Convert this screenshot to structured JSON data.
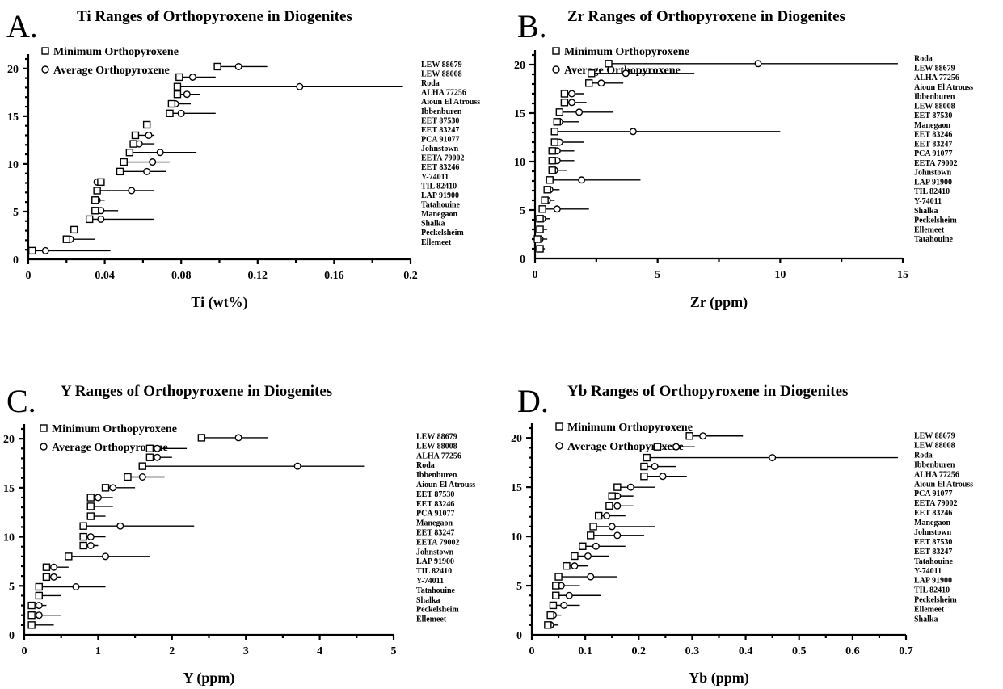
{
  "legend": {
    "minimum": "Minimum Orthopyroxene",
    "average": "Average Orthopyroxene"
  },
  "chart_data": [
    {
      "type": "scatter",
      "letter": "A.",
      "title": "Ti Ranges of Orthopyroxene in Diogenites",
      "xlabel": "Ti (wt%)",
      "xlim": [
        0,
        0.2
      ],
      "ylim": [
        0,
        21
      ],
      "xticks": [
        "0",
        "0.04",
        "0.08",
        "0.12",
        "0.16",
        "0.2"
      ],
      "xtick_values": [
        0,
        0.04,
        0.08,
        0.12,
        0.16,
        0.2
      ],
      "yticks": [
        "0",
        "5",
        "10",
        "15",
        "20"
      ],
      "yname_start": 20.5,
      "yname_step": 0.98,
      "names": [
        "LEW 88679",
        "LEW 88008",
        "Roda",
        "ALHA 77256",
        "Aioun El Atrouss",
        "Ibbenburen",
        "EET 87530",
        "EET 83247",
        "PCA 91077",
        "Johnstown",
        "EETA 79002",
        "EET 83246",
        "Y-74011",
        "TIL 82410",
        "LAP 91900",
        "Tatahouine",
        "Manegaon",
        "Shalka",
        "Peckelsheim",
        "Ellemeet"
      ],
      "series": [
        {
          "name": "Minimum Orthopyroxene",
          "marker": "square",
          "values": [
            0.099,
            0.079,
            0.078,
            0.078,
            0.075,
            0.074,
            0.062,
            0.056,
            0.055,
            0.053,
            0.05,
            0.048,
            0.038,
            0.036,
            0.035,
            0.035,
            0.032,
            0.024,
            0.02,
            0.002
          ]
        },
        {
          "name": "Average Orthopyroxene",
          "marker": "circle",
          "values": [
            0.11,
            0.086,
            0.142,
            0.083,
            0.077,
            0.08,
            0.062,
            0.063,
            0.058,
            0.069,
            0.065,
            0.062,
            0.036,
            0.054,
            0.036,
            0.038,
            0.038,
            0.024,
            0.022,
            0.009
          ]
        },
        {
          "name": "Maximum",
          "marker": "none",
          "values": [
            0.125,
            0.098,
            0.196,
            0.09,
            0.085,
            0.098,
            0.064,
            0.066,
            0.066,
            0.088,
            0.074,
            0.072,
            0.04,
            0.066,
            0.04,
            0.047,
            0.066,
            0.026,
            0.035,
            0.043
          ]
        }
      ],
      "y": [
        20.2,
        19.1,
        18.1,
        17.3,
        16.3,
        15.3,
        14.1,
        13.0,
        12.1,
        11.2,
        10.2,
        9.2,
        8.1,
        7.2,
        6.2,
        5.1,
        4.2,
        3.1,
        2.1,
        0.9
      ]
    },
    {
      "type": "scatter",
      "letter": "B.",
      "title": "Zr Ranges of Orthopyroxene in Diogenites",
      "xlabel": "Zr (ppm)",
      "xlim": [
        0,
        15
      ],
      "ylim": [
        0,
        21
      ],
      "xticks": [
        "0",
        "5",
        "10",
        "15"
      ],
      "xtick_values": [
        0,
        5,
        10,
        15
      ],
      "yticks": [
        "0",
        "5",
        "10",
        "15",
        "20"
      ],
      "yname_start": 20.7,
      "yname_step": 0.98,
      "names": [
        "Roda",
        "LEW 88679",
        "ALHA 77256",
        "Aioun El Atrouss",
        "Ibbenburen",
        "LEW 88008",
        "EET 87530",
        "Manegaon",
        "EET 83246",
        "EET 83247",
        "PCA 91077",
        "EETA 79002",
        "Johnstown",
        "LAP 91900",
        "TIL 82410",
        "Y-74011",
        "Shalka",
        "Peckelsheim",
        "Ellemeet",
        "Tatahouine"
      ],
      "series": [
        {
          "name": "Minimum Orthopyroxene",
          "marker": "square",
          "values": [
            3.0,
            2.3,
            2.2,
            1.2,
            1.2,
            1.0,
            0.9,
            0.8,
            0.8,
            0.7,
            0.7,
            0.7,
            0.6,
            0.5,
            0.4,
            0.3,
            0.2,
            0.2,
            0.1,
            0.2
          ]
        },
        {
          "name": "Average Orthopyroxene",
          "marker": "circle",
          "values": [
            9.1,
            3.7,
            2.7,
            1.5,
            1.5,
            1.8,
            1.0,
            4.0,
            1.0,
            0.9,
            0.9,
            0.8,
            1.9,
            0.6,
            0.5,
            0.9,
            0.3,
            0.2,
            0.2,
            0.2
          ]
        },
        {
          "name": "Maximum",
          "marker": "none",
          "values": [
            14.8,
            6.5,
            3.6,
            2.0,
            2.1,
            3.2,
            1.8,
            10.0,
            2.0,
            1.6,
            1.6,
            1.3,
            4.3,
            1.0,
            0.8,
            2.2,
            0.6,
            0.5,
            0.5,
            0.4
          ]
        }
      ],
      "y": [
        20.1,
        19.1,
        18.1,
        17.0,
        16.1,
        15.1,
        14.1,
        13.1,
        12.0,
        11.1,
        10.1,
        9.1,
        8.1,
        7.1,
        6.0,
        5.1,
        4.1,
        3.0,
        2.0,
        1.0
      ]
    },
    {
      "type": "scatter",
      "letter": "C.",
      "title": "Y Ranges of Orthopyroxene in Diogenites",
      "xlabel": "Y (ppm)",
      "xlim": [
        0,
        5
      ],
      "ylim": [
        0,
        21
      ],
      "xticks": [
        "0",
        "1",
        "2",
        "3",
        "4",
        "5"
      ],
      "xtick_values": [
        0,
        1,
        2,
        3,
        4,
        5
      ],
      "yticks": [
        "0",
        "5",
        "10",
        "15",
        "20"
      ],
      "yname_start": 20.3,
      "yname_step": 0.98,
      "names": [
        "LEW 88679",
        "LEW 88008",
        "ALHA 77256",
        "Roda",
        "Ibbenburen",
        "Aioun El Atrouss",
        "EET 87530",
        "EET 83246",
        "PCA 91077",
        "Manegaon",
        "EET 83247",
        "EETA 79002",
        "Johnstown",
        "LAP 91900",
        "TIL 82410",
        "Y-74011",
        "Tatahouine",
        "Shalka",
        "Peckelsheim",
        "Ellemeet"
      ],
      "series": [
        {
          "name": "Minimum Orthopyroxene",
          "marker": "square",
          "values": [
            2.4,
            1.7,
            1.7,
            1.6,
            1.4,
            1.1,
            0.9,
            0.9,
            0.9,
            0.8,
            0.8,
            0.8,
            0.6,
            0.3,
            0.3,
            0.2,
            0.2,
            0.1,
            0.1,
            0.1
          ]
        },
        {
          "name": "Average Orthopyroxene",
          "marker": "circle",
          "values": [
            2.9,
            1.8,
            1.8,
            3.7,
            1.6,
            1.2,
            1.0,
            0.9,
            0.9,
            1.3,
            0.9,
            0.9,
            1.1,
            0.4,
            0.4,
            0.7,
            0.2,
            0.2,
            0.2,
            0.1
          ]
        },
        {
          "name": "Maximum",
          "marker": "none",
          "values": [
            3.3,
            2.2,
            2.0,
            4.6,
            1.9,
            1.5,
            1.2,
            1.2,
            1.1,
            2.3,
            1.1,
            1.0,
            1.7,
            0.6,
            0.5,
            1.1,
            0.5,
            0.3,
            0.5,
            0.4
          ]
        }
      ],
      "y": [
        20.1,
        19.0,
        18.1,
        17.2,
        16.1,
        15.0,
        14.0,
        13.1,
        12.1,
        11.1,
        10.0,
        9.1,
        8.0,
        6.9,
        5.9,
        4.9,
        4.0,
        3.0,
        2.0,
        1.0
      ]
    },
    {
      "type": "scatter",
      "letter": "D.",
      "title": "Yb Ranges of Orthopyroxene in Diogenites",
      "xlabel": "Yb (ppm)",
      "xlim": [
        0,
        0.7
      ],
      "ylim": [
        0,
        21
      ],
      "xticks": [
        "0",
        "0.1",
        "0.2",
        "0.3",
        "0.4",
        "0.5",
        "0.6",
        "0.7"
      ],
      "xtick_values": [
        0,
        0.1,
        0.2,
        0.3,
        0.4,
        0.5,
        0.6,
        0.7
      ],
      "yticks": [
        "0",
        "5",
        "10",
        "15",
        "20"
      ],
      "yname_start": 20.3,
      "yname_step": 0.98,
      "names": [
        "LEW 88679",
        "LEW 88008",
        "Roda",
        "Ibbenburen",
        "ALHA 77256",
        "Aioun El Atrouss",
        "PCA 91077",
        "EETA 79002",
        "EET 83246",
        "Manegaon",
        "Johnstown",
        "EET 87530",
        "EET 83247",
        "Tatahouine",
        "Y-74011",
        "LAP 91900",
        "TIL 82410",
        "Peckelsheim",
        "Ellemeet",
        "Shalka"
      ],
      "series": [
        {
          "name": "Minimum Orthopyroxene",
          "marker": "square",
          "values": [
            0.295,
            0.235,
            0.215,
            0.21,
            0.21,
            0.16,
            0.15,
            0.145,
            0.125,
            0.115,
            0.11,
            0.095,
            0.08,
            0.065,
            0.05,
            0.045,
            0.045,
            0.04,
            0.035,
            0.03
          ]
        },
        {
          "name": "Average Orthopyroxene",
          "marker": "circle",
          "values": [
            0.32,
            0.27,
            0.45,
            0.23,
            0.245,
            0.185,
            0.16,
            0.16,
            0.14,
            0.15,
            0.16,
            0.12,
            0.105,
            0.08,
            0.11,
            0.055,
            0.07,
            0.06,
            0.04,
            0.035
          ]
        },
        {
          "name": "Maximum",
          "marker": "none",
          "values": [
            0.395,
            0.305,
            0.685,
            0.27,
            0.29,
            0.23,
            0.19,
            0.19,
            0.175,
            0.23,
            0.21,
            0.175,
            0.145,
            0.105,
            0.16,
            0.09,
            0.13,
            0.09,
            0.055,
            0.05
          ]
        }
      ],
      "y": [
        20.2,
        19.1,
        18.0,
        17.1,
        16.1,
        15.0,
        14.1,
        13.1,
        12.1,
        11.0,
        10.1,
        9.0,
        8.0,
        7.0,
        5.9,
        5.0,
        4.0,
        3.0,
        2.0,
        1.0
      ]
    }
  ]
}
